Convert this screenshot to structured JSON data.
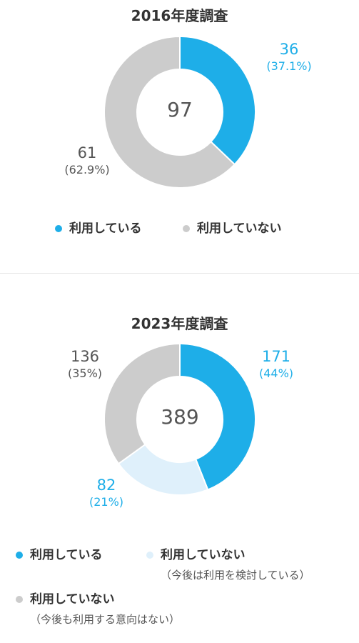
{
  "chart_data": [
    {
      "type": "pie",
      "variant": "donut",
      "title": "2016年度調査",
      "total": "97",
      "slices": [
        {
          "label": "利用している",
          "value": 36,
          "display_value": "36",
          "percent": "(37.1%)",
          "color": "#1eaee8",
          "label_color": "#1eaee8"
        },
        {
          "label": "利用していない",
          "value": 61,
          "display_value": "61",
          "percent": "(62.9%)",
          "color": "#cccccc",
          "label_color": "#555555"
        }
      ],
      "legend": [
        {
          "label": "利用している",
          "color": "#1eaee8"
        },
        {
          "label": "利用していない",
          "color": "#cccccc"
        }
      ]
    },
    {
      "type": "pie",
      "variant": "donut",
      "title": "2023年度調査",
      "total": "389",
      "slices": [
        {
          "label": "利用している",
          "value": 171,
          "display_value": "171",
          "percent": "(44%)",
          "color": "#1eaee8",
          "label_color": "#1eaee8"
        },
        {
          "label": "利用していない（今後は利用を検討している）",
          "value": 82,
          "display_value": "82",
          "percent": "(21%)",
          "color": "#dff0fb",
          "label_color": "#1eaee8"
        },
        {
          "label": "利用していない（今後も利用する意向はない）",
          "value": 136,
          "display_value": "136",
          "percent": "(35%)",
          "color": "#cccccc",
          "label_color": "#555555"
        }
      ],
      "legend": [
        {
          "label": "利用している",
          "sub": "",
          "color": "#1eaee8"
        },
        {
          "label": "利用していない",
          "sub": "（今後は利用を検討している）",
          "color": "#dff0fb"
        },
        {
          "label": "利用していない",
          "sub": "（今後も利用する意向はない）",
          "color": "#cccccc"
        }
      ]
    }
  ]
}
